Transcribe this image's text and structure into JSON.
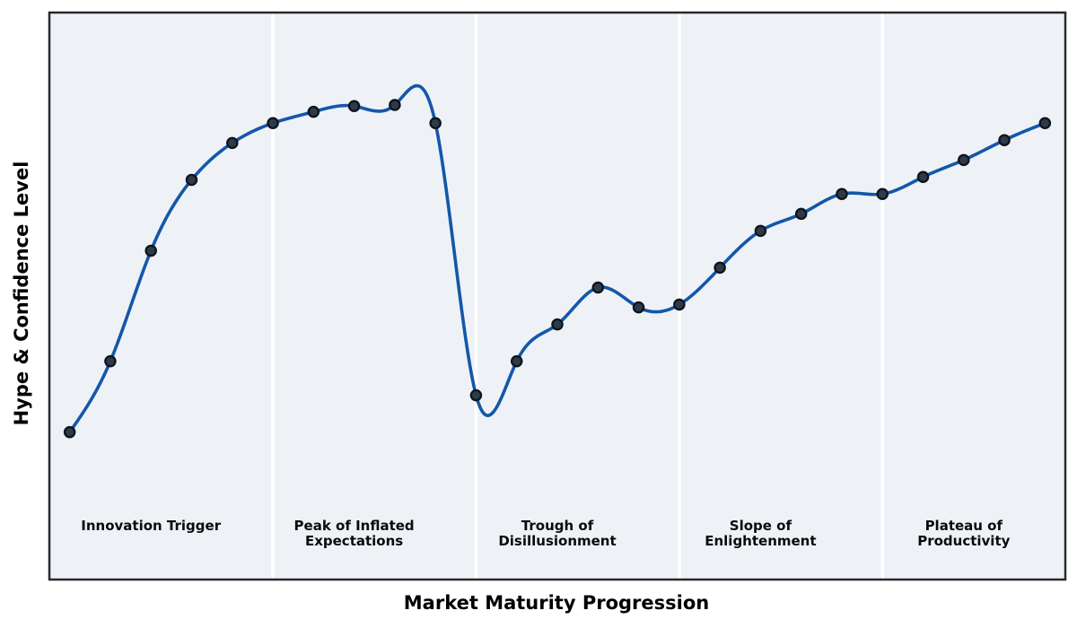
{
  "figure": {
    "background": "#ffffff",
    "plot_background": "#eef2f7",
    "border_color": "#27292e",
    "line_color": "#1457a9",
    "marker_fill": "#2e3a4a",
    "marker_edge": "#0e141c",
    "divider_color": "#ffffff"
  },
  "chart_data": {
    "type": "line",
    "xlabel": "Market Maturity Progression",
    "ylabel": "Hype & Confidence Level",
    "x": [
      0,
      1,
      2,
      3,
      4,
      5,
      6,
      7,
      8,
      9,
      10,
      11,
      12,
      13,
      14,
      15,
      16,
      17,
      18,
      19,
      20,
      21,
      22,
      23,
      24
    ],
    "y": [
      26,
      38.5,
      58,
      70.5,
      77,
      80.5,
      82.5,
      83.5,
      83.7,
      80.5,
      32.5,
      38.5,
      45,
      51.5,
      48,
      48.5,
      55,
      61.5,
      64.5,
      68,
      68,
      71,
      74,
      77.5,
      80.5
    ],
    "xlim": [
      -0.5,
      24.5
    ],
    "ylim": [
      0,
      100
    ],
    "grid": false,
    "legend": "none",
    "smoothing": "natural-cubic-spline",
    "marker": "circle",
    "tick_labels": "none",
    "phase_dividers_x": [
      5,
      10,
      15,
      20
    ],
    "phases": [
      {
        "label": "Innovation Trigger",
        "center_x": 2
      },
      {
        "label": "Peak of Inflated\nExpectations",
        "center_x": 7
      },
      {
        "label": "Trough of\nDisillusionment",
        "center_x": 12
      },
      {
        "label": "Slope of\nEnlightenment",
        "center_x": 17
      },
      {
        "label": "Plateau of\nProductivity",
        "center_x": 22
      }
    ]
  }
}
